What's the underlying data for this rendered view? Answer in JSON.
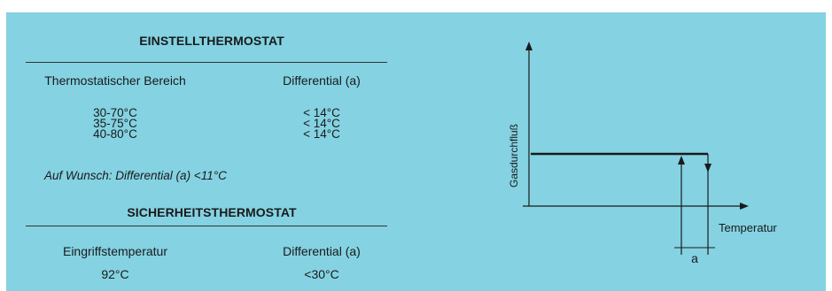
{
  "colors": {
    "panel_bg": "#84d2e2",
    "ink": "#1a1a1a"
  },
  "adjustable": {
    "title": "EINSTELLTHERMOSTAT",
    "col_range_header": "Thermostatischer Bereich",
    "col_diff_header": "Differential (a)",
    "rows": [
      {
        "range": "30-70°C",
        "diff": "< 14°C"
      },
      {
        "range": "35-75°C",
        "diff": "< 14°C"
      },
      {
        "range": "40-80°C",
        "diff": "< 14°C"
      }
    ],
    "note": "Auf Wunsch: Differential (a) <11°C"
  },
  "safety": {
    "title": "SICHERHEITSTHERMOSTAT",
    "col_temp_header": "Eingriffstemperatur",
    "col_diff_header": "Differential (a)",
    "temp_value": "92°C",
    "diff_value": "<30°C"
  },
  "diagram": {
    "y_axis_label": "Gasdurchfluß",
    "x_axis_label": "Temperatur",
    "hysteresis_label": "a"
  }
}
